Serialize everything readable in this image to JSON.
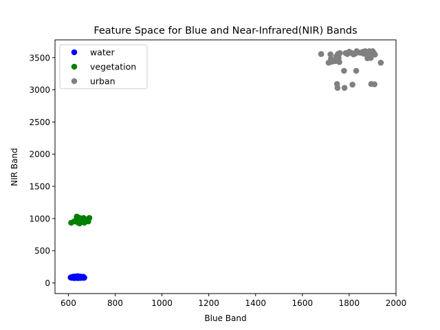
{
  "chart_data": {
    "type": "scatter",
    "title": "Feature Space for Blue and Near-Infrared(NIR) Bands",
    "xlabel": "Blue Band",
    "ylabel": "NIR Band",
    "xlim": [
      543,
      2000
    ],
    "ylim": [
      -165,
      3775
    ],
    "xticks": [
      600,
      800,
      1000,
      1200,
      1400,
      1600,
      1800,
      2000
    ],
    "yticks": [
      0,
      500,
      1000,
      1500,
      2000,
      2500,
      3000,
      3500
    ],
    "legend_position": "upper left",
    "grid": false,
    "series": [
      {
        "name": "water",
        "color": "#0000ff",
        "points": [
          [
            610,
            85
          ],
          [
            615,
            80
          ],
          [
            618,
            95
          ],
          [
            620,
            88
          ],
          [
            622,
            90
          ],
          [
            625,
            75
          ],
          [
            626,
            100
          ],
          [
            628,
            85
          ],
          [
            630,
            90
          ],
          [
            632,
            78
          ],
          [
            633,
            95
          ],
          [
            635,
            100
          ],
          [
            636,
            82
          ],
          [
            638,
            92
          ],
          [
            640,
            88
          ],
          [
            640,
            105
          ],
          [
            641,
            76
          ],
          [
            642,
            98
          ],
          [
            644,
            86
          ],
          [
            645,
            92
          ],
          [
            646,
            80
          ],
          [
            648,
            100
          ],
          [
            649,
            90
          ],
          [
            650,
            84
          ],
          [
            651,
            95
          ],
          [
            652,
            78
          ],
          [
            654,
            88
          ],
          [
            655,
            96
          ],
          [
            656,
            82
          ],
          [
            658,
            92
          ],
          [
            660,
            86
          ],
          [
            662,
            90
          ],
          [
            663,
            80
          ],
          [
            664,
            95
          ],
          [
            665,
            88
          ],
          [
            668,
            82
          ]
        ]
      },
      {
        "name": "vegetation",
        "color": "#008000",
        "points": [
          [
            612,
            935
          ],
          [
            625,
            955
          ],
          [
            632,
            970
          ],
          [
            636,
            1030
          ],
          [
            640,
            940
          ],
          [
            641,
            980
          ],
          [
            645,
            1015
          ],
          [
            648,
            925
          ],
          [
            650,
            990
          ],
          [
            652,
            960
          ],
          [
            655,
            945
          ],
          [
            658,
            1000
          ],
          [
            660,
            975
          ],
          [
            662,
            955
          ],
          [
            665,
            1010
          ],
          [
            668,
            935
          ],
          [
            672,
            990
          ],
          [
            676,
            960
          ],
          [
            680,
            975
          ],
          [
            685,
            955
          ],
          [
            690,
            1010
          ]
        ]
      },
      {
        "name": "urban",
        "color": "#808080",
        "points": [
          [
            1680,
            3555
          ],
          [
            1712,
            3420
          ],
          [
            1720,
            3550
          ],
          [
            1722,
            3480
          ],
          [
            1725,
            3435
          ],
          [
            1740,
            3445
          ],
          [
            1745,
            3520
          ],
          [
            1748,
            3090
          ],
          [
            1750,
            3030
          ],
          [
            1752,
            3555
          ],
          [
            1755,
            3495
          ],
          [
            1758,
            3430
          ],
          [
            1760,
            3570
          ],
          [
            1778,
            3295
          ],
          [
            1780,
            3030
          ],
          [
            1785,
            3570
          ],
          [
            1792,
            3555
          ],
          [
            1800,
            3590
          ],
          [
            1808,
            3575
          ],
          [
            1814,
            3080
          ],
          [
            1818,
            3550
          ],
          [
            1825,
            3560
          ],
          [
            1830,
            3295
          ],
          [
            1832,
            3600
          ],
          [
            1840,
            3580
          ],
          [
            1848,
            3575
          ],
          [
            1858,
            3590
          ],
          [
            1862,
            3560
          ],
          [
            1868,
            3600
          ],
          [
            1875,
            3545
          ],
          [
            1878,
            3490
          ],
          [
            1882,
            3575
          ],
          [
            1886,
            3600
          ],
          [
            1888,
            3550
          ],
          [
            1892,
            3495
          ],
          [
            1894,
            3090
          ],
          [
            1900,
            3600
          ],
          [
            1905,
            3570
          ],
          [
            1908,
            3085
          ],
          [
            1910,
            3545
          ],
          [
            1935,
            3420
          ]
        ]
      }
    ]
  }
}
